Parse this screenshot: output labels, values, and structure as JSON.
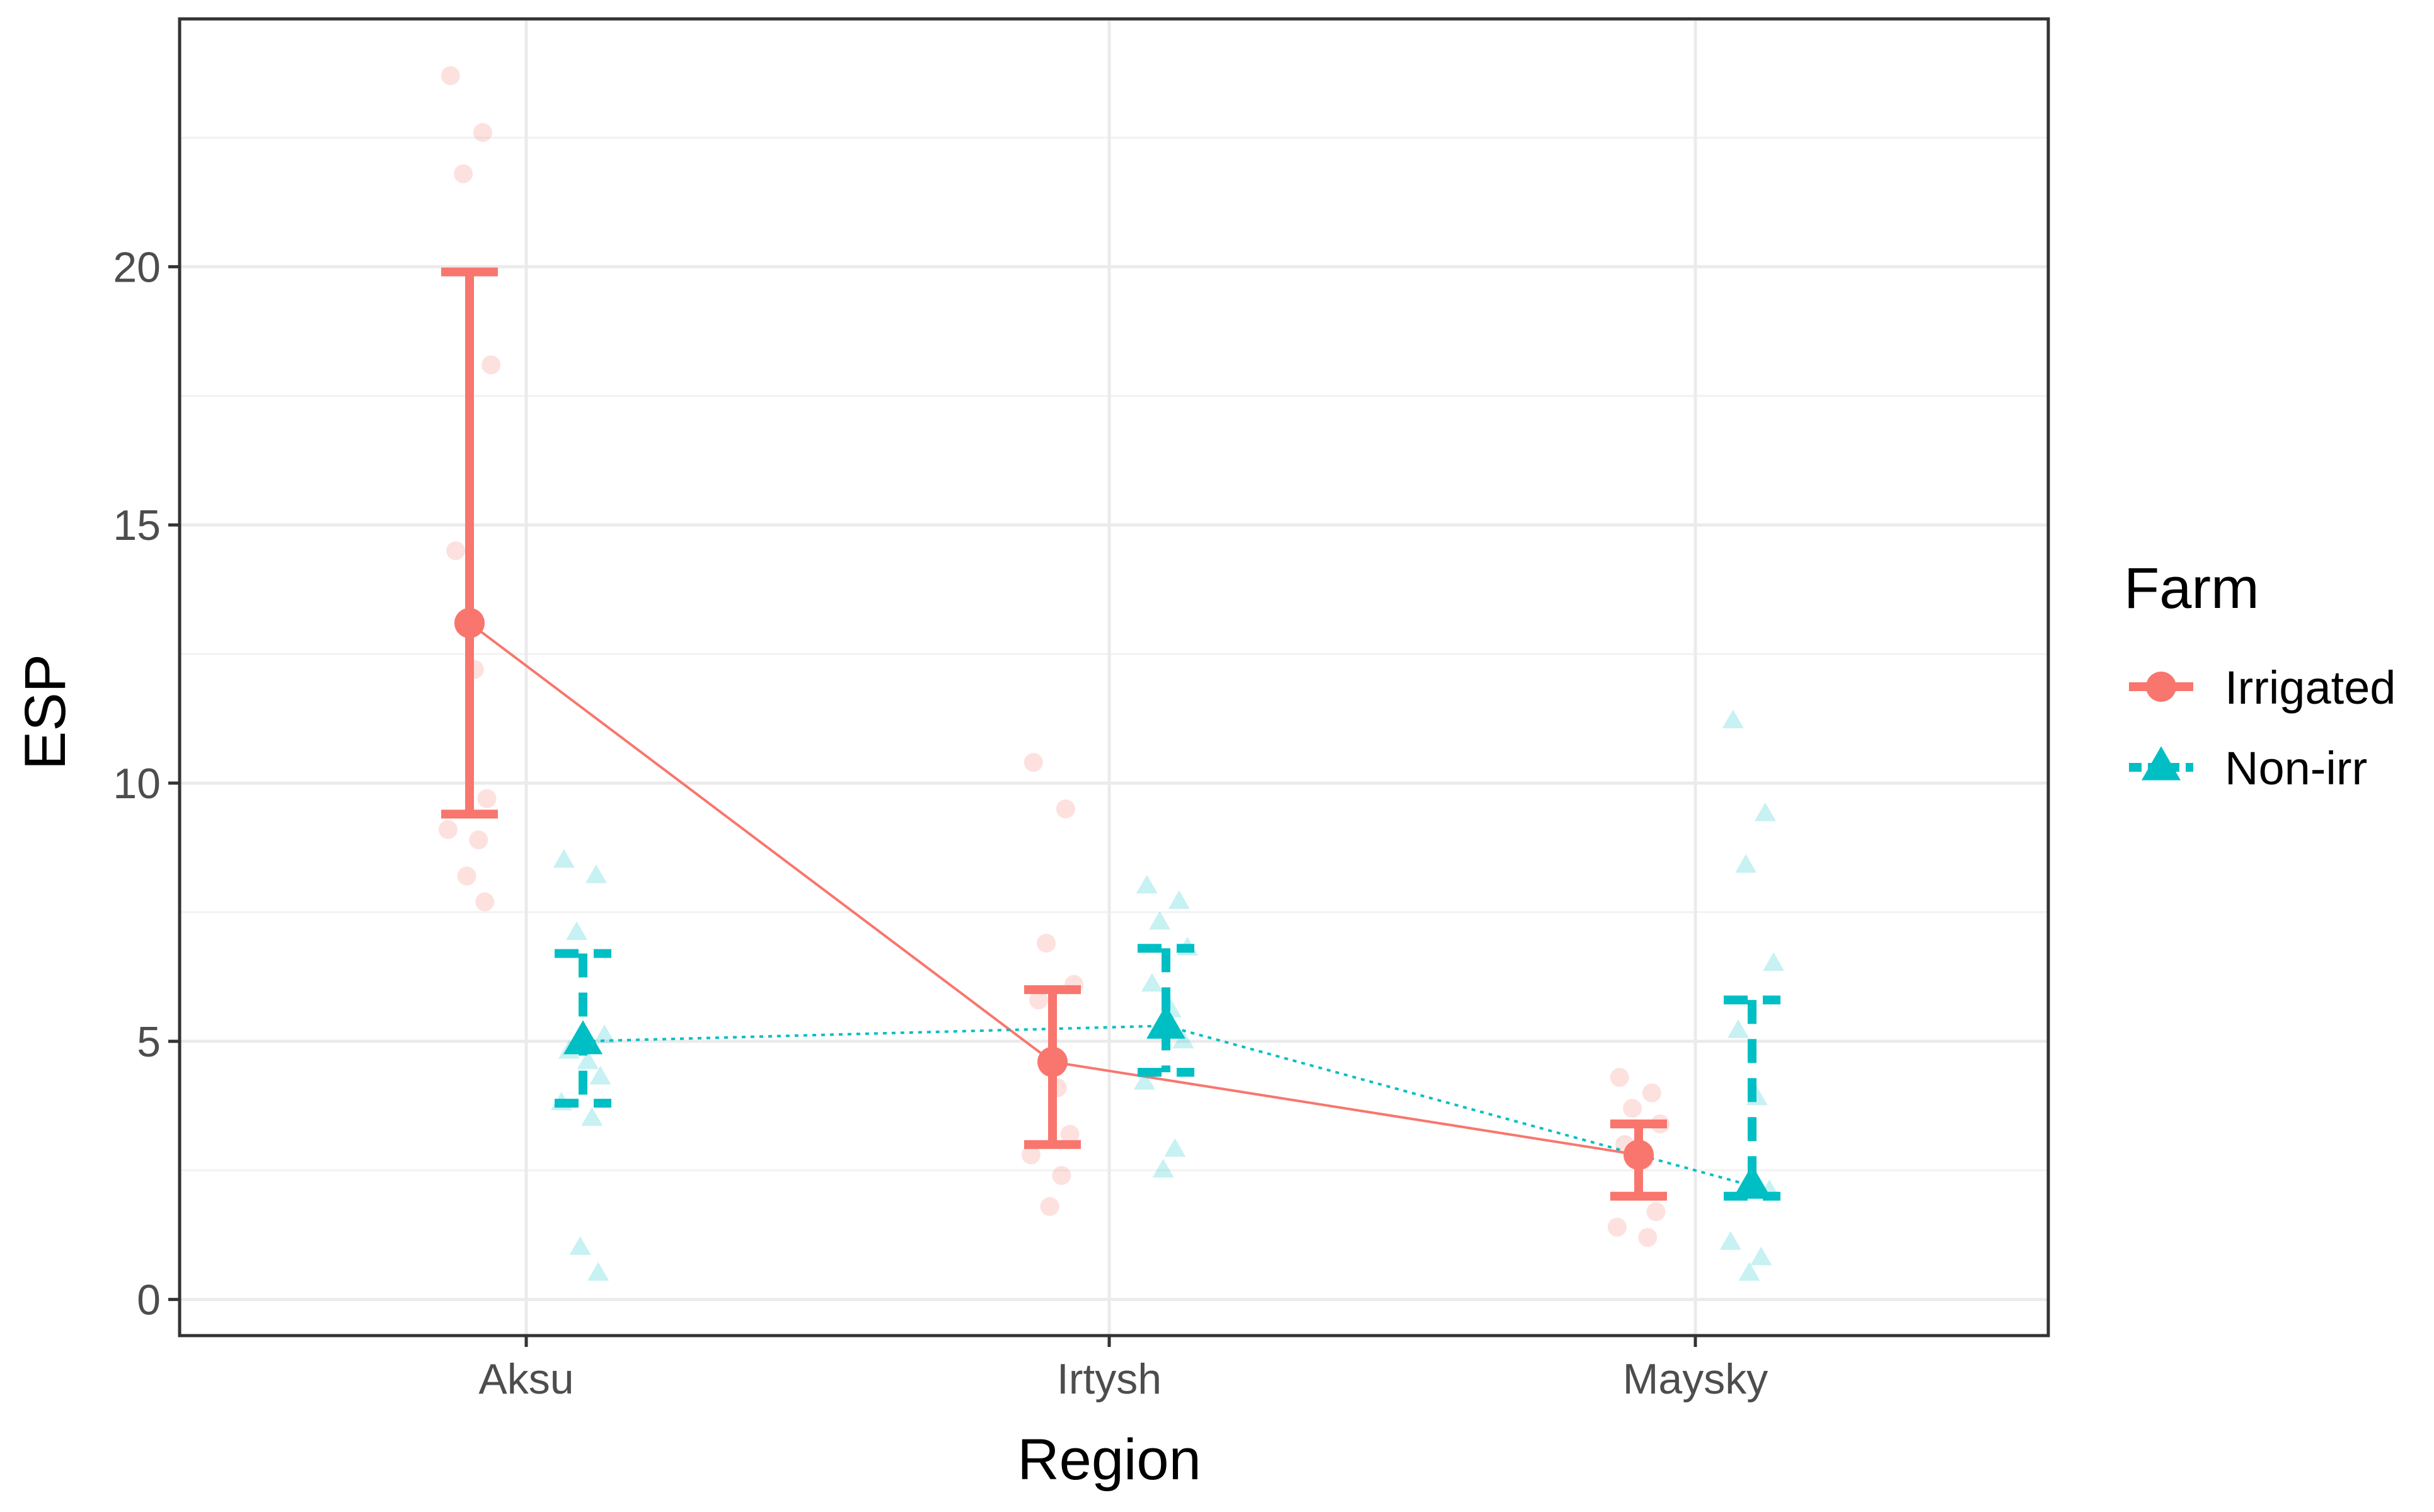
{
  "chart_data": {
    "type": "scatter",
    "title": "",
    "xlabel": "Region",
    "ylabel": "ESP",
    "categories": [
      "Aksu",
      "Irtysh",
      "Maysky"
    ],
    "ylim": [
      -0.7,
      24.8
    ],
    "yticks": [
      0,
      5,
      10,
      15,
      20
    ],
    "ytick_labels": [
      "0",
      "5",
      "10",
      "15",
      "20"
    ],
    "grid": true,
    "legend": {
      "title": "Farm",
      "position": "right"
    },
    "series": [
      {
        "name": "Irrigated",
        "color": "#F8766D",
        "marker": "circle",
        "line_style": "solid",
        "means": [
          13.1,
          4.6,
          2.8
        ],
        "ci_low": [
          9.4,
          3.0,
          2.0
        ],
        "ci_high": [
          19.9,
          6.0,
          3.4
        ],
        "raw_points": [
          [
            23.7,
            22.6,
            21.8,
            18.1,
            14.5,
            12.2,
            9.7,
            9.1,
            8.9,
            8.2,
            7.7
          ],
          [
            10.4,
            9.5,
            6.9,
            6.1,
            5.8,
            4.1,
            3.2,
            2.8,
            2.4,
            1.8
          ],
          [
            4.3,
            4.0,
            3.7,
            3.4,
            3.0,
            2.7,
            1.7,
            1.4,
            1.2
          ]
        ]
      },
      {
        "name": "Non-irr",
        "color": "#00BFC4",
        "marker": "triangle",
        "line_style": "dotted",
        "means": [
          5.0,
          5.3,
          2.2
        ],
        "ci_low": [
          3.8,
          4.4,
          2.0
        ],
        "ci_high": [
          6.7,
          6.8,
          5.8
        ],
        "raw_points": [
          [
            8.5,
            8.2,
            7.1,
            5.1,
            4.8,
            4.6,
            4.3,
            3.8,
            3.5,
            1.0,
            0.5
          ],
          [
            8.0,
            7.7,
            7.3,
            6.8,
            6.1,
            5.6,
            5.0,
            4.2,
            2.9,
            2.5
          ],
          [
            11.2,
            9.4,
            8.4,
            6.5,
            5.2,
            3.9,
            2.1,
            1.1,
            0.8,
            0.5
          ]
        ]
      }
    ]
  }
}
